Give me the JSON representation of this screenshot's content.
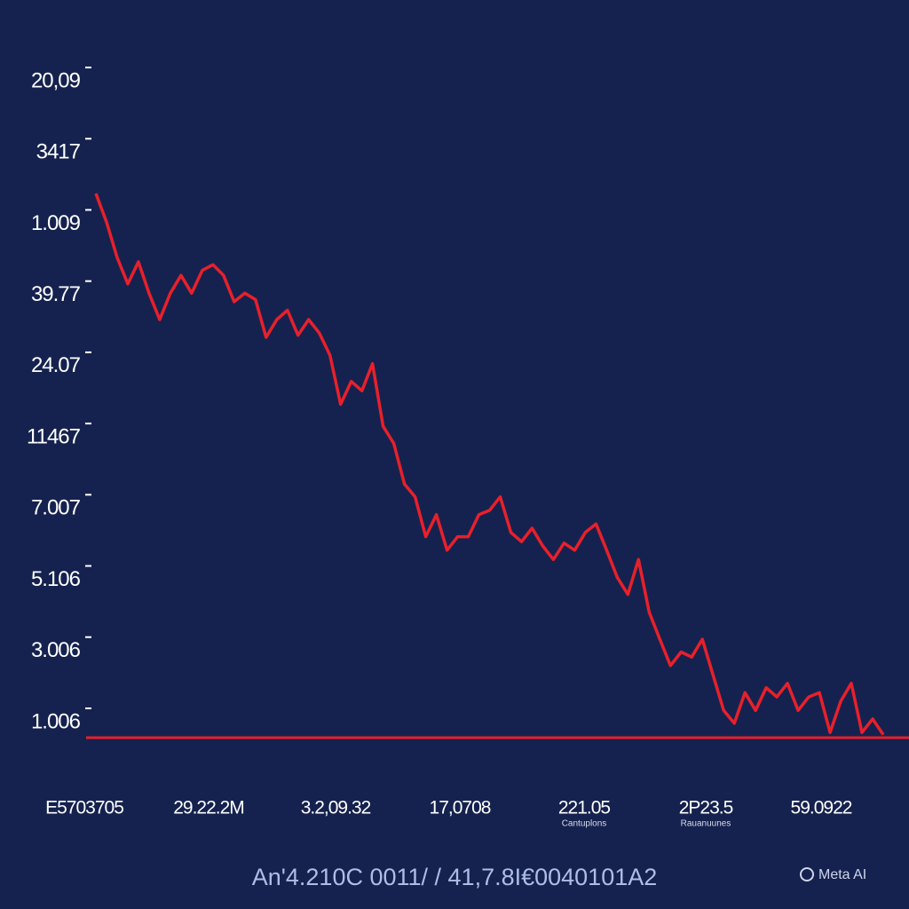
{
  "chart_data": {
    "type": "line",
    "color": "#e8202a",
    "ylim": [
      -0.2,
      9.2
    ],
    "yticks": [
      {
        "value": 0,
        "label": "1.006"
      },
      {
        "value": 1,
        "label": "3.006"
      },
      {
        "value": 2,
        "label": "5.106"
      },
      {
        "value": 3,
        "label": "7.007"
      },
      {
        "value": 4,
        "label": "11467"
      },
      {
        "value": 5,
        "label": "24.07"
      },
      {
        "value": 6,
        "label": "39.77"
      },
      {
        "value": 7,
        "label": "1.009"
      },
      {
        "value": 8,
        "label": "3417"
      },
      {
        "value": 9,
        "label": "20,09"
      }
    ],
    "grid": false,
    "values": [
      7.43,
      7.03,
      6.53,
      6.16,
      6.47,
      6.03,
      5.66,
      6.03,
      6.28,
      6.03,
      6.35,
      6.43,
      6.28,
      5.91,
      6.03,
      5.94,
      5.41,
      5.66,
      5.79,
      5.44,
      5.66,
      5.47,
      5.16,
      4.47,
      4.79,
      4.66,
      5.04,
      4.16,
      3.92,
      3.35,
      3.17,
      2.61,
      2.92,
      2.42,
      2.61,
      2.61,
      2.92,
      2.98,
      3.17,
      2.67,
      2.54,
      2.73,
      2.48,
      2.29,
      2.52,
      2.42,
      2.67,
      2.79,
      2.42,
      2.04,
      1.8,
      2.29,
      1.55,
      1.17,
      0.8,
      0.99,
      0.92,
      1.17,
      0.67,
      0.17,
      -0.01,
      0.42,
      0.17,
      0.49,
      0.36,
      0.55,
      0.17,
      0.36,
      0.42,
      -0.14,
      0.3,
      0.55,
      -0.14,
      0.05,
      -0.17
    ],
    "x_tick_labels": [
      {
        "label": "E5703705"
      },
      {
        "label": "29.22.2M"
      },
      {
        "label": "3.2,09.32"
      },
      {
        "label": "17,0708"
      },
      {
        "label": "221.05",
        "sublabel": "Cantuplons"
      },
      {
        "label": "2P23.5",
        "sublabel": "Rauanuunes"
      },
      {
        "label": "59.0922"
      }
    ]
  },
  "footer": {
    "text": "An'4.210C 0011/ / 41,7.8I€0040101A2",
    "watermark": "Meta AI"
  }
}
